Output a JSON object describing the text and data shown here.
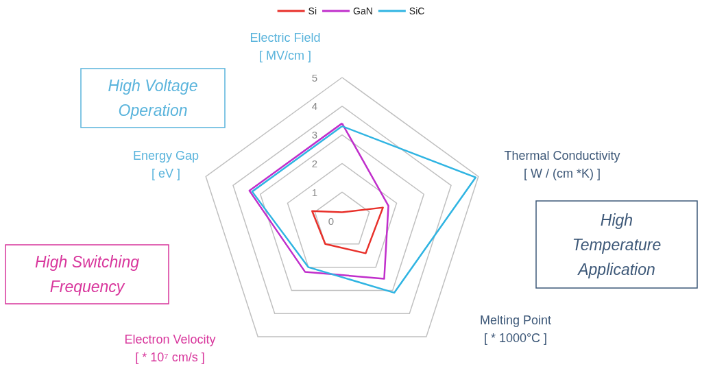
{
  "chart_data": {
    "type": "radar",
    "categories": [
      "Electric Field\n[ MV/cm ]",
      "Thermal Conductivity\n[ W / (cm *K) ]",
      "Melting Point\n[ * 1000°C ]",
      "Electron Velocity\n[ * 10⁷ cm/s ]",
      "Energy Gap\n[ eV ]"
    ],
    "series": [
      {
        "name": "Si",
        "color": "#e8302a",
        "values": [
          0.3,
          1.5,
          1.4,
          1.0,
          1.1
        ]
      },
      {
        "name": "GaN",
        "color": "#c02ecb",
        "values": [
          3.4,
          1.7,
          2.5,
          2.2,
          3.4
        ]
      },
      {
        "name": "SiC",
        "color": "#2fb4e2",
        "values": [
          3.3,
          4.9,
          3.1,
          2.0,
          3.3
        ]
      }
    ],
    "ylim": [
      0,
      5
    ],
    "yticks": [
      0,
      1,
      2,
      3,
      4,
      5
    ],
    "grid": true,
    "legend": "top",
    "marker": "none",
    "line_style": "solid",
    "annotations": [
      "High Voltage\nOperation",
      "High Switching\nFrequency",
      "High\nTemperature\nApplication"
    ]
  }
}
